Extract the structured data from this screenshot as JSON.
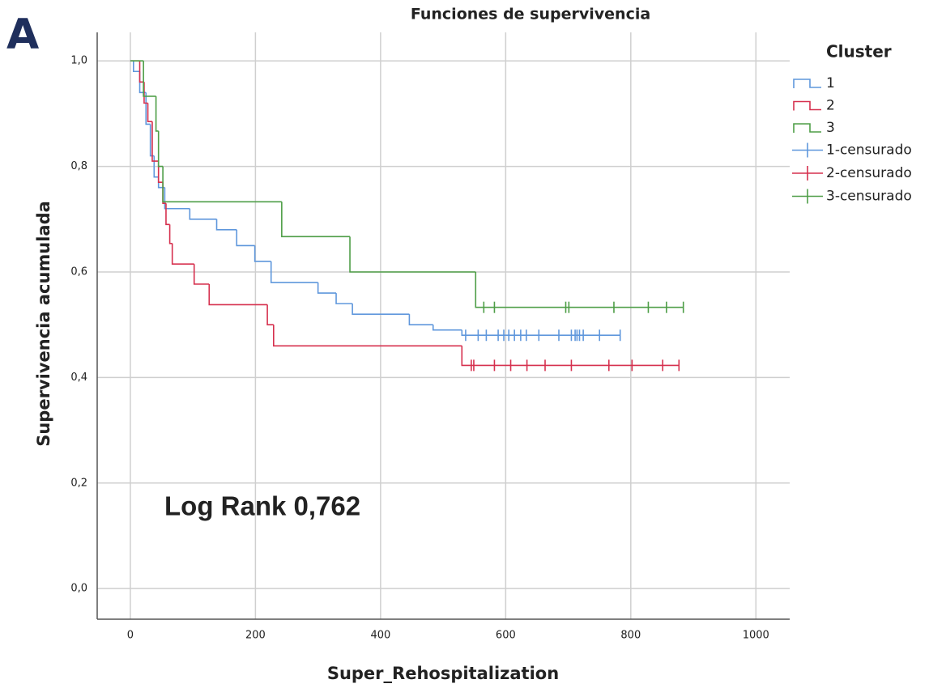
{
  "chart_data": {
    "type": "survival",
    "panel_label": "A",
    "title": "Funciones de supervivencia",
    "x_label": "Super_Rehospitalization",
    "y_label": "Supervivencia acumulada",
    "annotation": "Log Rank 0,762",
    "legend_title": "Cluster",
    "legend_position": "right",
    "grid": true,
    "xlim": [
      -53,
      1054
    ],
    "ylim": [
      -0.058,
      1.054
    ],
    "xticks": [
      0,
      200,
      400,
      600,
      800,
      1000
    ],
    "yticks": [
      {
        "value": 0,
        "label": "0,0"
      },
      {
        "value": 0.2,
        "label": "0,2"
      },
      {
        "value": 0.4,
        "label": "0,4"
      },
      {
        "value": 0.6,
        "label": "0,6"
      },
      {
        "value": 0.8,
        "label": "0,8"
      },
      {
        "value": 1,
        "label": "1,0"
      }
    ],
    "series": [
      {
        "name": "1",
        "color": "#5f97dc",
        "x": [
          0,
          5,
          15,
          25,
          32,
          38,
          45,
          55,
          95,
          138,
          170,
          199,
          225,
          300,
          329,
          355,
          446,
          484,
          530
        ],
        "values": [
          1.0,
          0.98,
          0.94,
          0.88,
          0.82,
          0.78,
          0.76,
          0.72,
          0.7,
          0.68,
          0.65,
          0.62,
          0.58,
          0.56,
          0.54,
          0.52,
          0.5,
          0.49,
          0.48
        ]
      },
      {
        "name": "2",
        "color": "#d6304e",
        "x": [
          0,
          15,
          22,
          28,
          35,
          45,
          52,
          57,
          63,
          67,
          102,
          126,
          219,
          229,
          530
        ],
        "values": [
          1.0,
          0.96,
          0.92,
          0.885,
          0.81,
          0.77,
          0.73,
          0.69,
          0.654,
          0.615,
          0.577,
          0.538,
          0.5,
          0.46,
          0.423
        ]
      },
      {
        "name": "3",
        "color": "#4e9e47",
        "x": [
          0,
          21,
          41,
          45,
          52,
          242,
          351,
          552
        ],
        "values": [
          1.0,
          0.933,
          0.867,
          0.8,
          0.733,
          0.667,
          0.6,
          0.533
        ]
      }
    ],
    "censored": [
      {
        "name": "1-censurado",
        "color": "#5f97dc",
        "x": [
          536,
          556,
          569,
          588,
          597,
          605,
          614,
          624,
          633,
          653,
          685,
          705,
          711,
          714,
          718,
          724,
          750,
          783
        ],
        "values": [
          0.48,
          0.48,
          0.48,
          0.48,
          0.48,
          0.48,
          0.48,
          0.48,
          0.48,
          0.48,
          0.48,
          0.48,
          0.48,
          0.48,
          0.48,
          0.48,
          0.48,
          0.48
        ]
      },
      {
        "name": "2-censurado",
        "color": "#d6304e",
        "x": [
          545,
          549,
          582,
          608,
          634,
          663,
          705,
          765,
          802,
          851,
          877
        ],
        "values": [
          0.423,
          0.423,
          0.423,
          0.423,
          0.423,
          0.423,
          0.423,
          0.423,
          0.423,
          0.423,
          0.423
        ]
      },
      {
        "name": "3-censurado",
        "color": "#4e9e47",
        "x": [
          565,
          582,
          696,
          701,
          773,
          828,
          857,
          884
        ],
        "values": [
          0.533,
          0.533,
          0.533,
          0.533,
          0.533,
          0.533,
          0.533,
          0.533
        ]
      }
    ]
  }
}
